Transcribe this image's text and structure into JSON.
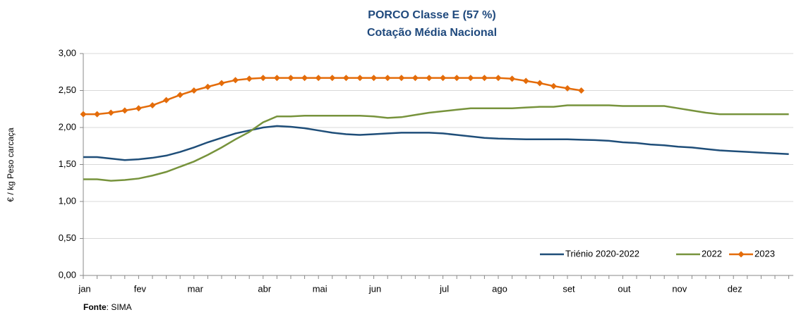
{
  "chart_data": {
    "type": "line",
    "title": "PORCO Classe E (57 %)",
    "subtitle": "Cotação Média Nacional",
    "y_label": "€ / kg Peso carcaça",
    "source_label": "Fonte",
    "source_text": ": SIMA",
    "categories": [
      "jan",
      null,
      null,
      null,
      "fev",
      null,
      null,
      null,
      "mar",
      null,
      null,
      null,
      null,
      "abr",
      null,
      null,
      null,
      "mai",
      null,
      null,
      null,
      "jun",
      null,
      null,
      null,
      null,
      "jul",
      null,
      null,
      null,
      "ago",
      null,
      null,
      null,
      null,
      "set",
      null,
      null,
      null,
      "out",
      null,
      null,
      null,
      "nov",
      null,
      null,
      null,
      "dez",
      null,
      null,
      null,
      null
    ],
    "ylim": [
      0,
      3
    ],
    "yticks": [
      {
        "value": 0,
        "label": "0,00"
      },
      {
        "value": 0.5,
        "label": "0,50"
      },
      {
        "value": 1,
        "label": "1,00"
      },
      {
        "value": 1.5,
        "label": "1,50"
      },
      {
        "value": 2,
        "label": "2,00"
      },
      {
        "value": 2.5,
        "label": "2,50"
      },
      {
        "value": 3,
        "label": "3,00"
      }
    ],
    "grid": true,
    "legend": "bottom-right",
    "series": [
      {
        "name": "Triénio 2020-2022",
        "color": "#1f4e79",
        "values": [
          1.6,
          1.6,
          1.58,
          1.56,
          1.57,
          1.59,
          1.62,
          1.67,
          1.73,
          1.8,
          1.86,
          1.92,
          1.96,
          2.0,
          2.02,
          2.01,
          1.99,
          1.96,
          1.93,
          1.91,
          1.9,
          1.91,
          1.92,
          1.93,
          1.93,
          1.93,
          1.92,
          1.9,
          1.88,
          1.86,
          1.85,
          1.845,
          1.84,
          1.84,
          1.84,
          1.84,
          1.835,
          1.83,
          1.82,
          1.8,
          1.79,
          1.77,
          1.76,
          1.74,
          1.73,
          1.71,
          1.69,
          1.68,
          1.67,
          1.66,
          1.65,
          1.64
        ]
      },
      {
        "name": "2022",
        "color": "#77933c",
        "values": [
          1.3,
          1.3,
          1.28,
          1.29,
          1.31,
          1.35,
          1.4,
          1.47,
          1.54,
          1.63,
          1.73,
          1.84,
          1.94,
          2.07,
          2.15,
          2.15,
          2.16,
          2.16,
          2.16,
          2.16,
          2.16,
          2.15,
          2.13,
          2.14,
          2.17,
          2.2,
          2.22,
          2.24,
          2.26,
          2.26,
          2.26,
          2.26,
          2.27,
          2.28,
          2.28,
          2.3,
          2.3,
          2.3,
          2.3,
          2.29,
          2.29,
          2.29,
          2.29,
          2.26,
          2.23,
          2.2,
          2.18,
          2.18,
          2.18,
          2.18,
          2.18,
          2.18
        ]
      },
      {
        "name": "2023",
        "color": "#e46c0a",
        "marker": "diamond",
        "values": [
          2.18,
          2.18,
          2.2,
          2.23,
          2.26,
          2.3,
          2.37,
          2.44,
          2.5,
          2.55,
          2.6,
          2.64,
          2.66,
          2.67,
          2.67,
          2.67,
          2.67,
          2.67,
          2.67,
          2.67,
          2.67,
          2.67,
          2.67,
          2.67,
          2.67,
          2.67,
          2.67,
          2.67,
          2.67,
          2.67,
          2.67,
          2.66,
          2.63,
          2.6,
          2.56,
          2.53,
          2.5,
          null,
          null,
          null,
          null,
          null,
          null,
          null,
          null,
          null,
          null,
          null,
          null,
          null,
          null,
          null
        ]
      }
    ]
  }
}
